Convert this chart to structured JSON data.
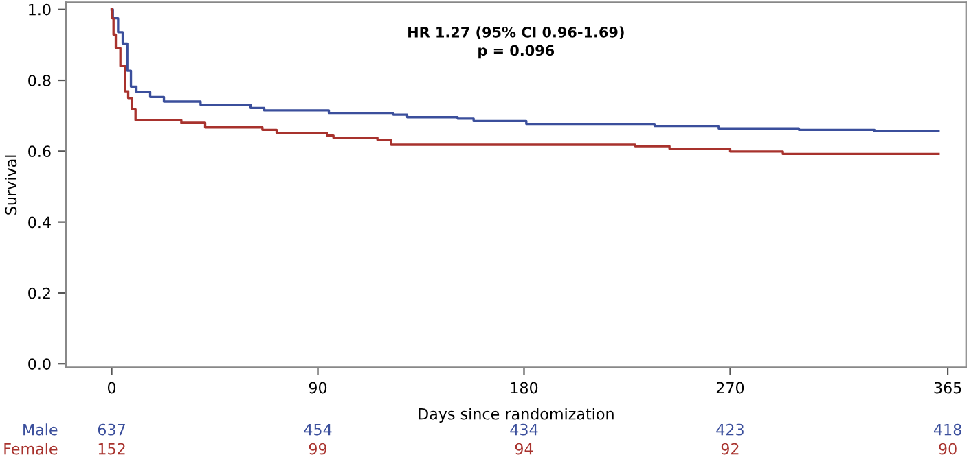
{
  "chart_data": {
    "type": "step",
    "xlabel": "Days since randomization",
    "ylabel": "Survival",
    "xlim": [
      -20,
      373
    ],
    "ylim": [
      -0.01,
      1.02
    ],
    "xticks": [
      0,
      90,
      180,
      270,
      365
    ],
    "yticks": [
      {
        "value": 0,
        "label": "0.0"
      },
      0.2,
      0.4,
      0.6,
      0.8,
      {
        "value": 1,
        "label": "1.0"
      }
    ],
    "grid": false,
    "legend": false,
    "marker": "none",
    "line_style": "solid",
    "series": [
      {
        "name": "Male",
        "color": "#3b4f9c",
        "x": [
          0,
          0.5,
          2.8,
          4.8,
          6.8,
          8.4,
          10.8,
          16.8,
          22.8,
          38.8,
          60.6,
          66.6,
          94.8,
          123,
          129,
          151,
          158,
          181,
          237,
          265,
          300,
          333,
          361
        ],
        "values": [
          1.0,
          0.975,
          0.936,
          0.904,
          0.827,
          0.782,
          0.767,
          0.753,
          0.74,
          0.731,
          0.722,
          0.715,
          0.708,
          0.703,
          0.696,
          0.692,
          0.685,
          0.677,
          0.671,
          0.664,
          0.66,
          0.656,
          0.656
        ]
      },
      {
        "name": "Female",
        "color": "#a8322d",
        "x": [
          0,
          0.3,
          0.8,
          1.8,
          3.8,
          5.8,
          7.2,
          8.8,
          10.4,
          30.4,
          40.8,
          65.8,
          72,
          94,
          96.8,
          116,
          122,
          228.5,
          243.5,
          270,
          293,
          361
        ],
        "values": [
          1.0,
          0.975,
          0.929,
          0.891,
          0.84,
          0.769,
          0.75,
          0.718,
          0.688,
          0.68,
          0.667,
          0.66,
          0.651,
          0.644,
          0.638,
          0.632,
          0.618,
          0.614,
          0.607,
          0.599,
          0.592,
          0.592
        ]
      }
    ],
    "annotations": [
      "HR 1.27 (95% CI 0.96-1.69)",
      "p = 0.096",
      "637",
      "454",
      "434",
      "423",
      "418",
      "152",
      "99",
      "94",
      "92",
      "90"
    ]
  }
}
